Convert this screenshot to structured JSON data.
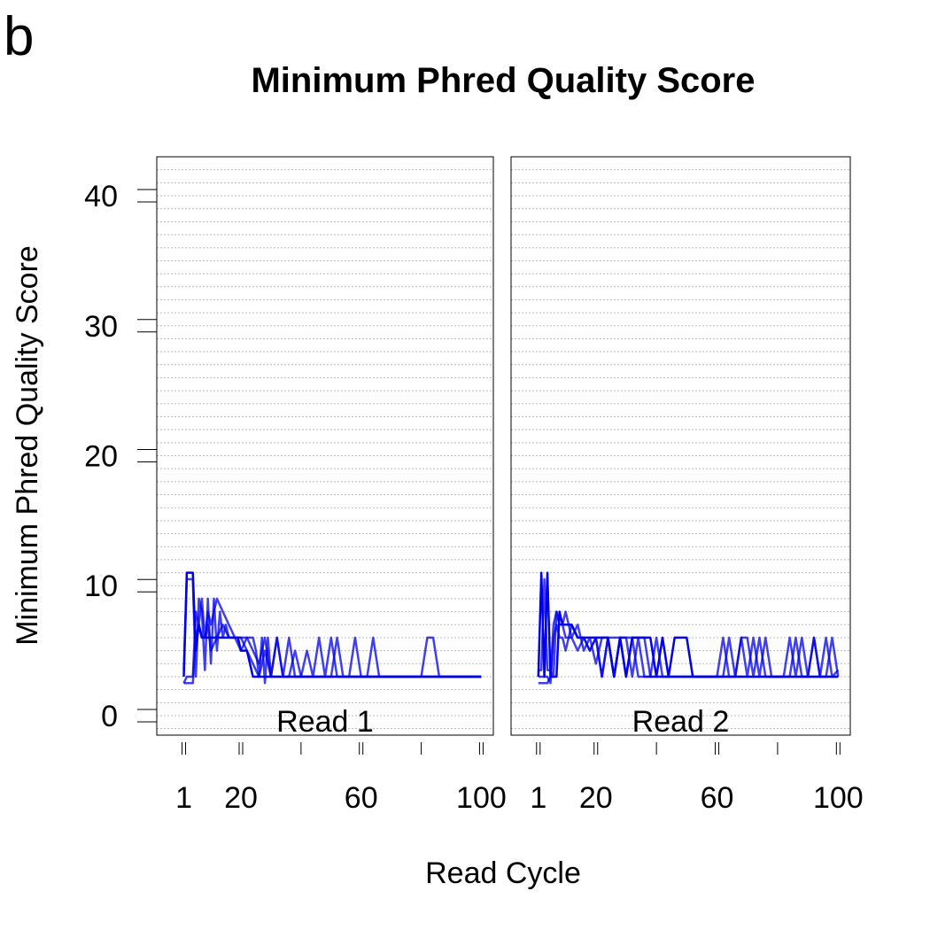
{
  "panel_letter": "b",
  "chart_data": {
    "type": "line",
    "title": "Minimum Phred Quality Score",
    "xlabel": "Read Cycle",
    "ylabel": "Minimum Phred Quality Score",
    "ylim": [
      -1.5,
      43
    ],
    "y_ticks": [
      0,
      10,
      20,
      30,
      40
    ],
    "y_tick_labels": [
      "0",
      "10",
      "20",
      "30",
      "40"
    ],
    "grid": true,
    "legend": "none",
    "line_color": "#0000ee",
    "panels": [
      {
        "label": "Read 1",
        "xlim": [
          -8,
          104
        ],
        "x_ticks": [
          1,
          20,
          60,
          100
        ],
        "x_tick_labels": [
          "1",
          "20",
          "60",
          "100"
        ],
        "series": [
          {
            "x": [
              1,
              2,
              3,
              4,
              5,
              6,
              7,
              8,
              9,
              10,
              11,
              12,
              13,
              14,
              15,
              16,
              17,
              18,
              19,
              20,
              22,
              24,
              26,
              28,
              30,
              32,
              34,
              36,
              38,
              40,
              42,
              44,
              46,
              48,
              50,
              52,
              54,
              56,
              58,
              60,
              62,
              64,
              66,
              68,
              70,
              75,
              80,
              85,
              90,
              95,
              100
            ],
            "y": [
              3,
              11,
              11,
              11,
              5,
              7,
              6,
              6,
              6,
              6,
              6,
              6,
              6,
              6,
              6,
              6,
              6,
              6,
              6,
              5,
              5,
              3,
              3,
              3,
              3,
              3,
              3,
              3,
              3,
              3,
              3,
              3,
              3,
              3,
              3,
              3,
              3,
              3,
              3,
              3,
              3,
              3,
              3,
              3,
              3,
              3,
              3,
              3,
              3,
              3,
              3
            ]
          },
          {
            "x": [
              1,
              2,
              3,
              4,
              5,
              6,
              7,
              8,
              9,
              10,
              11,
              12,
              13,
              14,
              15,
              16,
              17,
              18,
              19,
              20,
              21,
              22,
              23,
              24,
              25,
              26,
              27,
              28,
              29,
              30,
              32,
              34,
              36,
              38,
              40,
              42,
              44,
              46,
              48,
              50,
              52,
              54,
              56,
              58,
              60,
              62,
              64,
              66,
              68,
              70,
              72,
              74,
              76,
              78,
              80,
              82,
              84,
              86,
              88,
              90,
              95,
              100
            ],
            "y": [
              3.5,
              10.5,
              10.5,
              10.5,
              3,
              9,
              8,
              3.5,
              9,
              4,
              9,
              5,
              8,
              6,
              7,
              6,
              6,
              6,
              6,
              6,
              6,
              6,
              6,
              6,
              5,
              3,
              6,
              2.5,
              6,
              3,
              6,
              3,
              6,
              3,
              3,
              5,
              3,
              6,
              3,
              6,
              3,
              3,
              3,
              6,
              3,
              3,
              6,
              3,
              3,
              3,
              3,
              3,
              3,
              3,
              3,
              3,
              3,
              3,
              3,
              3,
              3,
              3
            ]
          },
          {
            "x": [
              1,
              2,
              3,
              4,
              5,
              6,
              7,
              8,
              9,
              10,
              12,
              14,
              16,
              18,
              20,
              22,
              24,
              26,
              28,
              30,
              32,
              34,
              36,
              38,
              40,
              42,
              44,
              46,
              48,
              50,
              52,
              54,
              56,
              58,
              60,
              62,
              64,
              66,
              68,
              70,
              75,
              80,
              82,
              84,
              86,
              88,
              90,
              95,
              100
            ],
            "y": [
              2.5,
              3,
              3,
              3,
              8,
              7,
              9,
              6,
              8,
              7,
              9,
              8,
              7,
              6,
              5,
              6,
              5,
              4,
              6,
              3,
              6,
              3,
              3,
              5,
              3,
              3,
              3,
              3,
              3,
              3,
              6,
              3,
              3,
              3,
              3,
              3,
              3,
              3,
              3,
              3,
              3,
              3,
              6,
              6,
              3,
              3,
              3,
              3,
              3
            ]
          },
          {
            "x": [
              1,
              2,
              3,
              4,
              5,
              6,
              7,
              8,
              9,
              10,
              12,
              14,
              16,
              18,
              20,
              22,
              24,
              26,
              28,
              30,
              32,
              34,
              36,
              38,
              40,
              44,
              48,
              52,
              56,
              60,
              64,
              68,
              72,
              76,
              80,
              84,
              88,
              90,
              95,
              100
            ],
            "y": [
              2.5,
              2.5,
              2.5,
              2.5,
              6,
              7,
              6,
              6,
              7,
              5,
              6,
              7,
              6,
              6,
              6,
              5,
              4,
              3,
              5,
              3,
              3,
              3,
              3,
              3,
              3,
              3,
              3,
              3,
              3,
              3,
              3,
              3,
              3,
              3,
              3,
              3,
              3,
              3,
              3,
              3
            ]
          }
        ]
      },
      {
        "label": "Read 2",
        "xlim": [
          -8,
          104
        ],
        "x_ticks": [
          1,
          20,
          60,
          100
        ],
        "x_tick_labels": [
          "1",
          "20",
          "60",
          "100"
        ],
        "series": [
          {
            "x": [
              1,
              2,
              3,
              4,
              5,
              6,
              7,
              8,
              9,
              10,
              12,
              14,
              16,
              18,
              20,
              22,
              24,
              26,
              28,
              30,
              32,
              34,
              36,
              38,
              40,
              42,
              44,
              46,
              48,
              50,
              52,
              54,
              56,
              58,
              60,
              62,
              64,
              66,
              68,
              70,
              72,
              74,
              76,
              78,
              80,
              82,
              84,
              86,
              88,
              90,
              92,
              94,
              96,
              98,
              100
            ],
            "y": [
              3,
              11,
              3,
              11,
              3,
              3,
              3,
              8,
              7,
              7,
              7,
              6,
              6,
              6,
              6,
              6,
              6,
              3,
              6,
              3,
              6,
              6,
              6,
              6,
              3,
              6,
              3,
              6,
              6,
              6,
              3,
              3,
              3,
              3,
              3,
              3,
              3,
              3,
              3,
              3,
              3,
              3,
              3,
              3,
              3,
              3,
              3,
              3,
              3,
              3,
              3,
              3,
              3,
              3,
              3
            ]
          },
          {
            "x": [
              1,
              2,
              3,
              4,
              5,
              6,
              7,
              8,
              9,
              10,
              12,
              14,
              16,
              18,
              20,
              22,
              24,
              26,
              28,
              30,
              32,
              34,
              36,
              38,
              40,
              42,
              44,
              46,
              48,
              50,
              52,
              54,
              56,
              58,
              60,
              62,
              64,
              66,
              68,
              70,
              72,
              74,
              76,
              78,
              80,
              82,
              84,
              86,
              88,
              90,
              92,
              94,
              96,
              98,
              100
            ],
            "y": [
              3.5,
              3.5,
              10.5,
              3.5,
              3.5,
              3,
              8,
              7,
              7,
              6,
              6,
              5,
              6,
              5,
              6,
              3,
              6,
              3,
              6,
              6,
              3,
              6,
              3,
              3,
              6,
              3,
              3,
              3,
              3,
              3,
              3,
              3,
              3,
              3,
              3,
              3,
              6,
              3,
              6,
              3,
              6,
              3,
              6,
              3,
              3,
              3,
              6,
              3,
              6,
              3,
              6,
              3,
              6,
              3,
              3.5
            ]
          },
          {
            "x": [
              1,
              2,
              3,
              4,
              5,
              6,
              7,
              8,
              9,
              10,
              12,
              14,
              16,
              18,
              20,
              22,
              24,
              26,
              28,
              30,
              32,
              34,
              36,
              38,
              40,
              42,
              44,
              46,
              48,
              50,
              52,
              54,
              56,
              58,
              60,
              62,
              64,
              66,
              68,
              70,
              72,
              74,
              76,
              78,
              80,
              82,
              84,
              86,
              88,
              90,
              92,
              94,
              96,
              98,
              100
            ],
            "y": [
              2.5,
              2.5,
              2.5,
              2.5,
              3,
              7,
              8,
              7,
              7,
              8,
              6,
              7,
              5,
              6,
              4,
              6,
              6,
              6,
              6,
              6,
              6,
              6,
              6,
              3,
              3,
              3,
              3,
              3,
              3,
              3,
              3,
              3,
              3,
              3,
              3,
              6,
              3,
              3,
              6,
              6,
              3,
              6,
              3,
              3,
              3,
              3,
              3,
              6,
              3,
              3,
              6,
              3,
              3,
              6,
              3
            ]
          },
          {
            "x": [
              1,
              2,
              3,
              4,
              5,
              6,
              7,
              8,
              9,
              10,
              12,
              14,
              16,
              18,
              20,
              22,
              24,
              26,
              28,
              30,
              32,
              34,
              36,
              38,
              40,
              44,
              48,
              52,
              56,
              60,
              64,
              68,
              72,
              76,
              80,
              84,
              88,
              92,
              96,
              100
            ],
            "y": [
              3,
              3,
              3,
              3,
              2.5,
              6,
              7,
              6,
              6,
              5,
              7,
              6,
              6,
              5,
              6,
              3,
              6,
              3,
              6,
              3,
              6,
              3,
              3,
              3,
              3,
              3,
              3,
              3,
              3,
              3,
              3,
              3,
              3,
              3,
              3,
              3,
              3,
              3,
              3,
              3
            ]
          }
        ]
      }
    ]
  }
}
